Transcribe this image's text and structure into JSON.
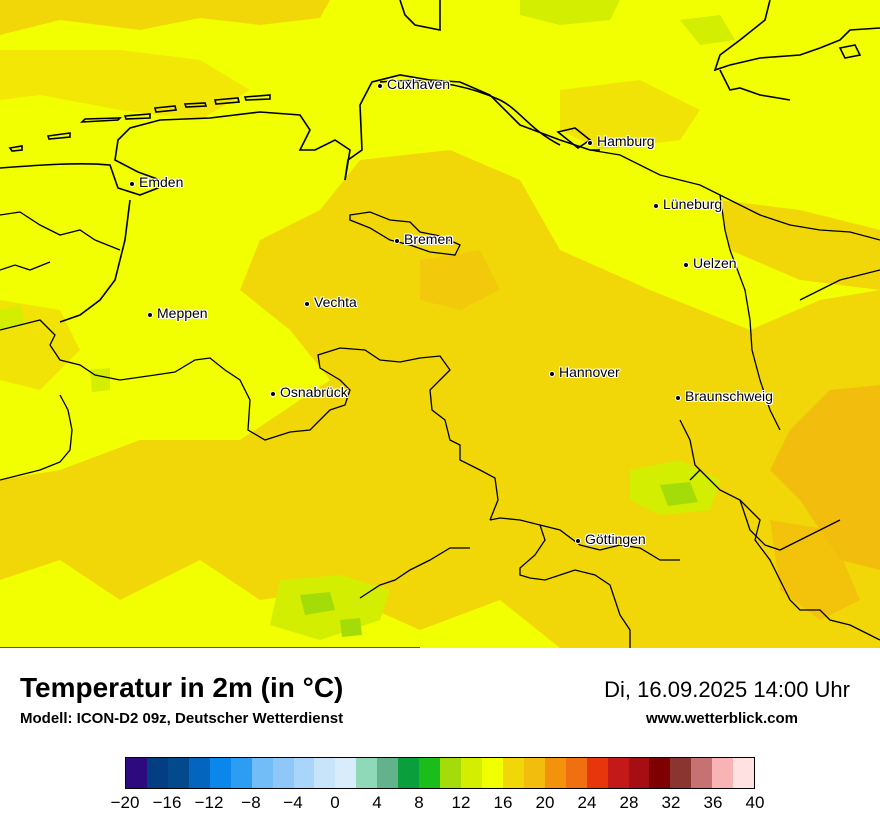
{
  "title": "Temperatur in 2m (in °C)",
  "subtitle": "Modell: ICON-D2 09z, Deutscher Wetterdienst",
  "datetime": "Di, 16.09.2025 14:00 Uhr",
  "website": "www.wetterblick.com",
  "cities": [
    {
      "name": "Cuxhaven"
    },
    {
      "name": "Hamburg"
    },
    {
      "name": "Emden"
    },
    {
      "name": "Lüneburg"
    },
    {
      "name": "Bremen"
    },
    {
      "name": "Uelzen"
    },
    {
      "name": "Vechta"
    },
    {
      "name": "Meppen"
    },
    {
      "name": "Hannover"
    },
    {
      "name": "Osnabrück"
    },
    {
      "name": "Braunschweig"
    },
    {
      "name": "Göttingen"
    }
  ],
  "legend": {
    "colors": [
      "#2d0a7e",
      "#043e82",
      "#024a8c",
      "#0465bf",
      "#0b86ea",
      "#2d9cf3",
      "#72bdf8",
      "#8fc7f8",
      "#a9d5fa",
      "#c8e4fb",
      "#d8ecfb",
      "#8fd8b8",
      "#62b38c",
      "#0a9e3c",
      "#1bbd1a",
      "#a4dc0a",
      "#d3ee00",
      "#f2ff00",
      "#f2d708",
      "#f3bd0d",
      "#f3930c",
      "#f06f10",
      "#e7360b",
      "#c41919",
      "#a50f13",
      "#7e0000",
      "#8b3530",
      "#c77272",
      "#f8b4b4",
      "#ffe1e1"
    ],
    "ticks": [
      "−20",
      "−16",
      "−12",
      "−8",
      "−4",
      "0",
      "4",
      "8",
      "12",
      "16",
      "20",
      "24",
      "28",
      "32",
      "36",
      "40"
    ],
    "min": -20,
    "max": 40
  }
}
